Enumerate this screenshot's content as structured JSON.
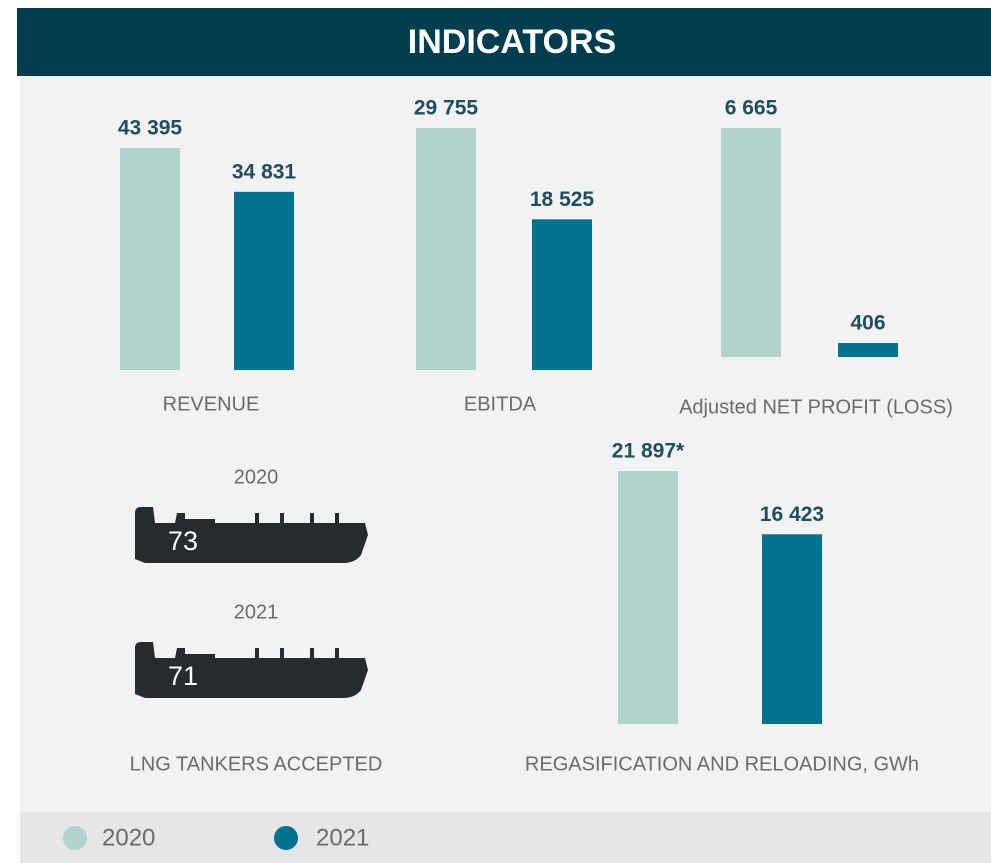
{
  "title": "INDICATORS",
  "legend": [
    {
      "name": "2020",
      "color": "#b2d3cc"
    },
    {
      "name": "2021",
      "color": "#00718f"
    }
  ],
  "chart_data": [
    {
      "type": "bar",
      "title": "REVENUE",
      "values": [
        43395,
        34831
      ],
      "value_labels": [
        "43 395",
        "34 831"
      ]
    },
    {
      "type": "bar",
      "title": "EBITDA",
      "values": [
        29755,
        18525
      ],
      "value_labels": [
        "29 755",
        "18 525"
      ]
    },
    {
      "type": "bar",
      "title": "Adjusted NET PROFIT (LOSS)",
      "values": [
        6665,
        406
      ],
      "value_labels": [
        "6 665",
        "406"
      ]
    },
    {
      "type": "bar",
      "title": "REGASIFICATION AND RELOADING, GWh",
      "values": [
        21897,
        16423
      ],
      "value_labels": [
        "21 897*",
        "16 423"
      ]
    }
  ],
  "tankers": {
    "title": "LNG TANKERS ACCEPTED",
    "items": [
      {
        "year": "2020",
        "value": "73"
      },
      {
        "year": "2021",
        "value": "71"
      }
    ]
  }
}
